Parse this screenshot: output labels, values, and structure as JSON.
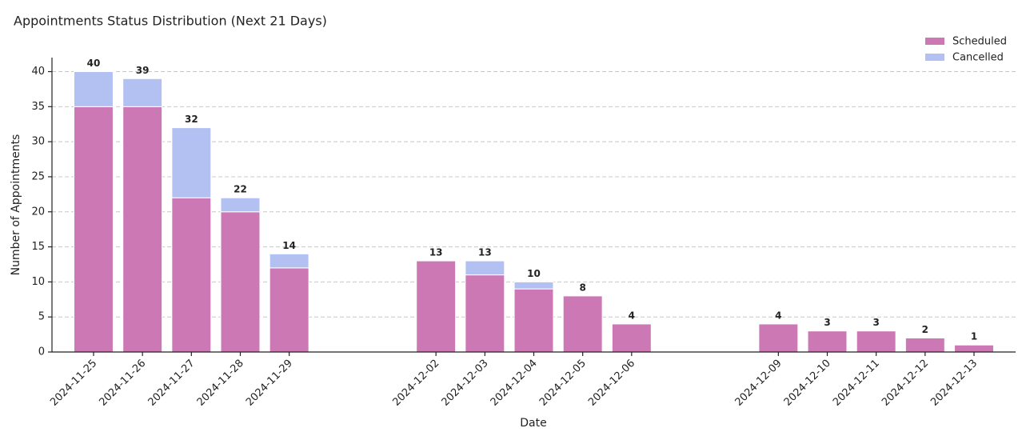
{
  "chart_data": {
    "type": "stacked-bar",
    "title": "Appointments Status Distribution (Next 21 Days)",
    "x_label": "Date",
    "y_label": "Number of Appointments",
    "x": [
      "2024-11-25",
      "2024-11-26",
      "2024-11-27",
      "2024-11-28",
      "2024-11-29",
      "2024-12-02",
      "2024-12-03",
      "2024-12-04",
      "2024-12-05",
      "2024-12-06",
      "2024-12-09",
      "2024-12-10",
      "2024-12-11",
      "2024-12-12",
      "2024-12-13"
    ],
    "series": [
      {
        "name": "Scheduled",
        "color": "#cc78b5",
        "values": [
          35,
          35,
          22,
          20,
          12,
          13,
          11,
          9,
          8,
          4,
          4,
          3,
          3,
          2,
          1
        ]
      },
      {
        "name": "Cancelled",
        "color": "#b3c1f2",
        "values": [
          5,
          4,
          10,
          2,
          2,
          0,
          2,
          1,
          0,
          0,
          0,
          0,
          0,
          0,
          0
        ]
      }
    ],
    "totals": [
      40,
      39,
      32,
      22,
      14,
      13,
      13,
      10,
      8,
      4,
      4,
      3,
      3,
      2,
      1
    ],
    "ylim": [
      0,
      42
    ],
    "yticks": [
      0,
      5,
      10,
      15,
      20,
      25,
      30,
      35,
      40
    ],
    "grid": true,
    "legend": "upper right"
  }
}
